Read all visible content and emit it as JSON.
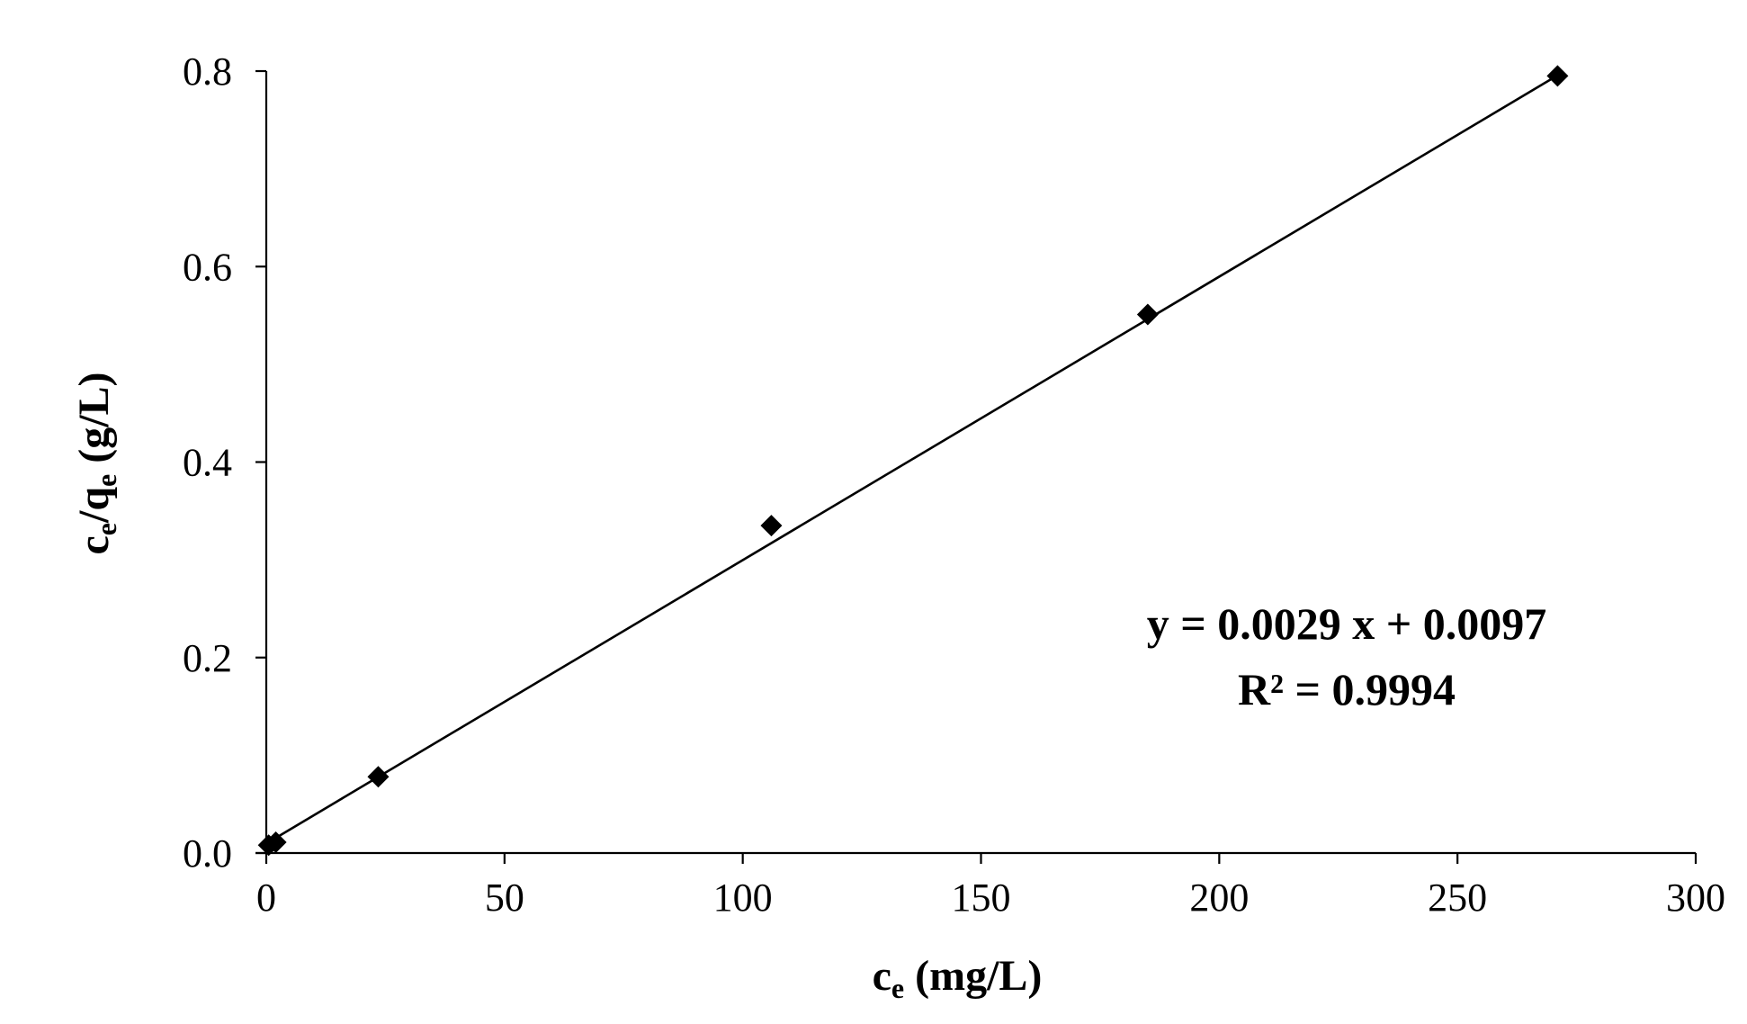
{
  "chart_data": {
    "type": "scatter",
    "title": "",
    "xlabel": {
      "base": "c",
      "sub": "e",
      "rest": " (mg/L)"
    },
    "ylabel": {
      "c": "c",
      "c_sub": "e",
      "slash": "/q",
      "q_sub": "e",
      "rest": " (g/L)"
    },
    "xlim": [
      0,
      300
    ],
    "ylim": [
      0,
      0.8
    ],
    "x_ticks": [
      0,
      50,
      100,
      150,
      200,
      250,
      300
    ],
    "x_tick_labels": [
      "0",
      "50",
      "100",
      "150",
      "200",
      "250",
      "300"
    ],
    "y_ticks": [
      0,
      0.2,
      0.4,
      0.6,
      0.8
    ],
    "y_tick_labels": [
      "0.0",
      "0.2",
      "0.4",
      "0.6",
      "0.8"
    ],
    "grid": false,
    "legend": "none",
    "series": [
      {
        "marker": "diamond",
        "color": "#000000",
        "points": [
          {
            "x": 0.5,
            "y": 0.008
          },
          {
            "x": 2.0,
            "y": 0.011
          },
          {
            "x": 23.5,
            "y": 0.078
          },
          {
            "x": 106,
            "y": 0.335
          },
          {
            "x": 185,
            "y": 0.551
          },
          {
            "x": 271,
            "y": 0.795
          }
        ]
      }
    ],
    "trendline": {
      "slope": 0.0029,
      "intercept": 0.0097,
      "x_range": [
        0,
        271
      ],
      "color": "#000000"
    },
    "annotations": {
      "equation": "y = 0.0029 x + 0.0097",
      "r_squared": "R² = 0.9994"
    }
  }
}
